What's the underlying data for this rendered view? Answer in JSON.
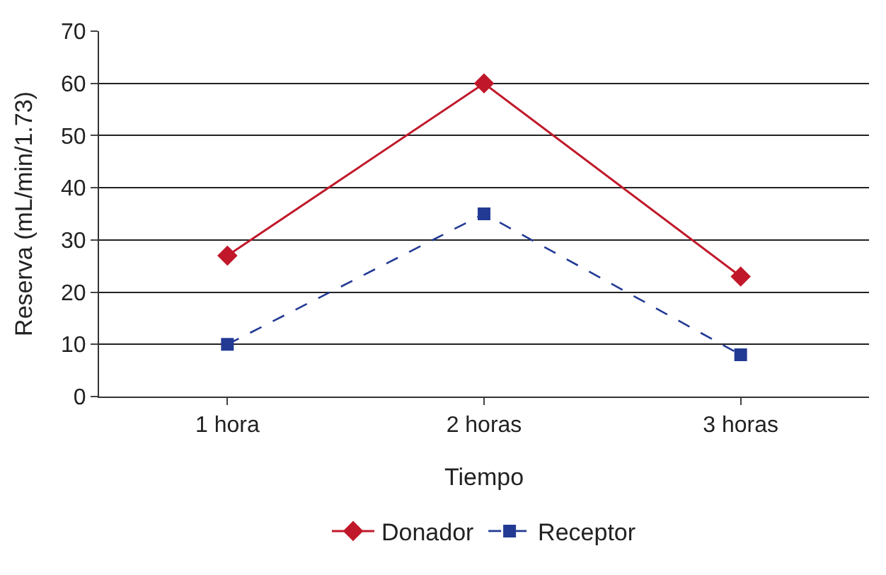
{
  "chart_data": {
    "type": "line",
    "xlabel": "Tiempo",
    "ylabel": "Reserva (mL/min/1.73)",
    "categories": [
      "1 hora",
      "2 horas",
      "3 horas"
    ],
    "series": [
      {
        "name": "Donador",
        "color": "#c0182a",
        "values": [
          27,
          60,
          23
        ],
        "marker": "diamond",
        "line_style": "solid"
      },
      {
        "name": "Receptor",
        "color": "#233a94",
        "values": [
          10,
          35,
          8
        ],
        "marker": "square",
        "line_style": "dashed"
      }
    ],
    "ylim": [
      0,
      70
    ],
    "yticks": [
      0,
      10,
      20,
      30,
      40,
      50,
      60,
      70
    ],
    "grid": "y",
    "legend": "bottom"
  }
}
